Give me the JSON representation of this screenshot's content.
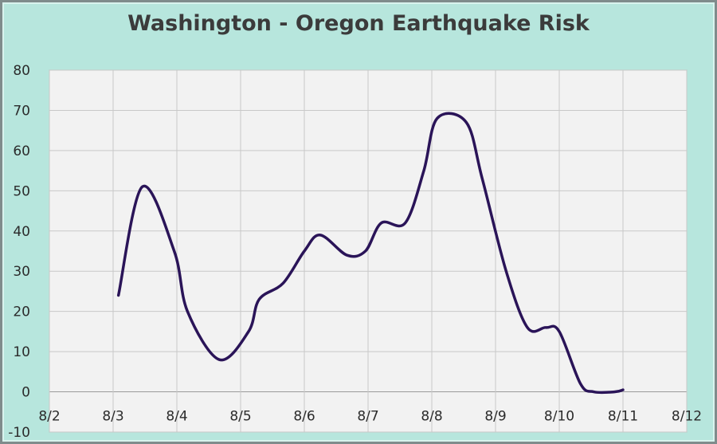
{
  "chart_data": {
    "type": "line",
    "title": "Washington - Oregon Earthquake Risk",
    "xlabel": "",
    "ylabel": "",
    "x_ticks": [
      "8/2",
      "8/3",
      "8/4",
      "8/5",
      "8/6",
      "8/7",
      "8/8",
      "8/9",
      "8/10",
      "8/11",
      "8/12"
    ],
    "y_ticks": [
      "-10",
      "0",
      "10",
      "20",
      "30",
      "40",
      "50",
      "60",
      "70",
      "80"
    ],
    "ylim": [
      -10,
      80
    ],
    "xlim": [
      "8/2",
      "8/12"
    ],
    "grid": true,
    "colors": {
      "line": "#2a1458",
      "plot_bg": "#f2f2f2",
      "grid": "#c8c8c8",
      "page_bg": "#b7e6dd"
    },
    "series": [
      {
        "x": [
          "8/3 02:00",
          "8/3 11:00",
          "8/3 23:00",
          "8/4 04:00",
          "8/4 16:00",
          "8/5 03:00",
          "8/5 07:00",
          "8/5 16:00",
          "8/6 00:00",
          "8/6 06:00",
          "8/6 16:00",
          "8/6 23:00",
          "8/7 05:00",
          "8/7 14:00",
          "8/7 21:00",
          "8/8 02:00",
          "8/8 13:00",
          "8/8 19:00",
          "8/9 04:00",
          "8/9 12:00",
          "8/9 19:00",
          "8/10 00:00",
          "8/10 08:00",
          "8/10 13:00",
          "8/10 21:00",
          "8/11 00:00"
        ],
        "values": [
          24,
          51,
          35,
          20,
          8,
          15,
          23,
          27,
          35,
          39,
          34,
          35,
          42,
          42,
          55,
          68,
          67,
          53,
          30,
          16,
          16,
          15,
          2,
          0,
          0,
          0.5
        ]
      }
    ]
  }
}
